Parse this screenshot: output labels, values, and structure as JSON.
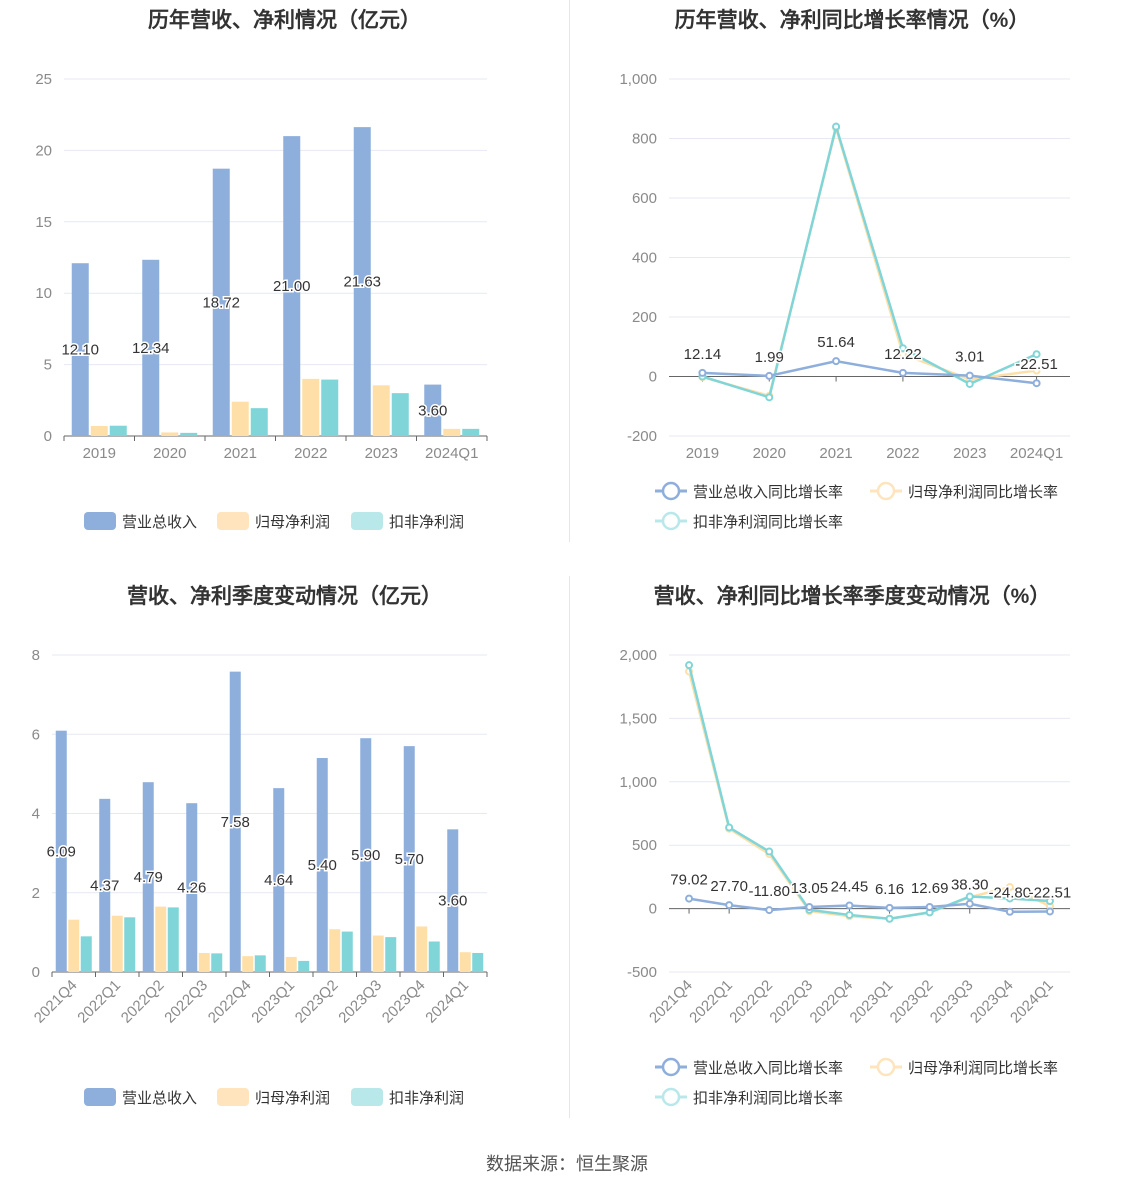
{
  "source_label": "数据来源：恒生聚源",
  "colors": {
    "revenue": "#8eaedc",
    "net_profit": "#ffdfa8",
    "deducted_profit": "#7fd5d7",
    "legend_revenue": "#8eaedc",
    "legend_net_profit": "#ffe4bd",
    "legend_deducted_profit": "#b8e8ea",
    "grid": "#e6e9f2",
    "axis": "#666666",
    "tick_text": "#8a8a8a"
  },
  "chart_data": [
    {
      "id": "annual-amounts",
      "type": "bar",
      "title": "历年营收、净利情况（亿元）",
      "categories": [
        "2019",
        "2020",
        "2021",
        "2022",
        "2023",
        "2024Q1"
      ],
      "ylim": [
        0,
        25
      ],
      "yticks": [
        0,
        5,
        10,
        15,
        20,
        25
      ],
      "ytick_labels": [
        "0",
        "5",
        "10",
        "15",
        "20",
        "25"
      ],
      "grid": true,
      "legend_position": "bottom",
      "series": [
        {
          "name": "营业总收入",
          "values": [
            12.1,
            12.34,
            18.72,
            21.0,
            21.63,
            3.6
          ],
          "labels": [
            "12.10",
            "12.34",
            "18.72",
            "21.00",
            "21.63",
            "3.60"
          ]
        },
        {
          "name": "归母净利润",
          "values": [
            0.7,
            0.25,
            2.4,
            4.0,
            3.55,
            0.5
          ]
        },
        {
          "name": "扣非净利润",
          "values": [
            0.72,
            0.22,
            1.95,
            3.95,
            3.0,
            0.5
          ]
        }
      ]
    },
    {
      "id": "annual-growth",
      "type": "line",
      "title": "历年营收、净利同比增长率情况（%）",
      "categories": [
        "2019",
        "2020",
        "2021",
        "2022",
        "2023",
        "2024Q1"
      ],
      "ylim": [
        -200,
        1000
      ],
      "yticks": [
        -200,
        0,
        200,
        400,
        600,
        800,
        1000
      ],
      "ytick_labels": [
        "-200",
        "0",
        "200",
        "400",
        "600",
        "800",
        "1,000"
      ],
      "grid": true,
      "legend_position": "bottom",
      "series": [
        {
          "name": "营业总收入同比增长率",
          "values": [
            12.14,
            1.99,
            51.64,
            12.22,
            3.01,
            -22.51
          ],
          "labels": [
            "12.14",
            "1.99",
            "51.64",
            "12.22",
            "3.01",
            "-22.51"
          ]
        },
        {
          "name": "归母净利润同比增长率",
          "values": [
            -2,
            -65,
            835,
            75,
            -10,
            20
          ]
        },
        {
          "name": "扣非净利润同比增长率",
          "values": [
            0,
            -70,
            840,
            95,
            -25,
            75
          ]
        }
      ]
    },
    {
      "id": "quarterly-amounts",
      "type": "bar",
      "title": "营收、净利季度变动情况（亿元）",
      "categories": [
        "2021Q4",
        "2022Q1",
        "2022Q2",
        "2022Q3",
        "2022Q4",
        "2023Q1",
        "2023Q2",
        "2023Q3",
        "2023Q4",
        "2024Q1"
      ],
      "ylim": [
        0,
        8
      ],
      "yticks": [
        0,
        2,
        4,
        6,
        8
      ],
      "ytick_labels": [
        "0",
        "2",
        "4",
        "6",
        "8"
      ],
      "grid": true,
      "legend_position": "bottom",
      "series": [
        {
          "name": "营业总收入",
          "values": [
            6.09,
            4.37,
            4.79,
            4.26,
            7.58,
            4.64,
            5.4,
            5.9,
            5.7,
            3.6
          ],
          "labels": [
            "6.09",
            "4.37",
            "4.79",
            "4.26",
            "7.58",
            "4.64",
            "5.40",
            "5.90",
            "5.70",
            "3.60"
          ]
        },
        {
          "name": "归母净利润",
          "values": [
            1.32,
            1.42,
            1.65,
            0.48,
            0.4,
            0.38,
            1.08,
            0.92,
            1.15,
            0.5
          ]
        },
        {
          "name": "扣非净利润",
          "values": [
            0.9,
            1.38,
            1.63,
            0.47,
            0.42,
            0.28,
            1.02,
            0.88,
            0.77,
            0.48
          ]
        }
      ]
    },
    {
      "id": "quarterly-growth",
      "type": "line",
      "title": "营收、净利同比增长率季度变动情况（%）",
      "categories": [
        "2021Q4",
        "2022Q1",
        "2022Q2",
        "2022Q3",
        "2022Q4",
        "2023Q1",
        "2023Q2",
        "2023Q3",
        "2023Q4",
        "2024Q1"
      ],
      "ylim": [
        -500,
        2000
      ],
      "yticks": [
        -500,
        0,
        500,
        1000,
        1500,
        2000
      ],
      "ytick_labels": [
        "-500",
        "0",
        "500",
        "1,000",
        "1,500",
        "2,000"
      ],
      "grid": true,
      "legend_position": "bottom",
      "series": [
        {
          "name": "营业总收入同比增长率",
          "values": [
            79.02,
            27.7,
            -11.8,
            13.05,
            24.45,
            6.16,
            12.69,
            38.3,
            -24.8,
            -22.51
          ],
          "labels": [
            "79.02",
            "27.70",
            "-11.80",
            "13.05",
            "24.45",
            "6.16",
            "12.69",
            "38.30",
            "-24.80",
            "-22.51"
          ]
        },
        {
          "name": "归母净利润同比增长率",
          "values": [
            1870,
            630,
            430,
            -20,
            -60,
            -80,
            -30,
            90,
            170,
            20
          ]
        },
        {
          "name": "扣非净利润同比增长率",
          "values": [
            1920,
            640,
            450,
            -10,
            -50,
            -80,
            -30,
            95,
            80,
            60
          ]
        }
      ]
    }
  ]
}
